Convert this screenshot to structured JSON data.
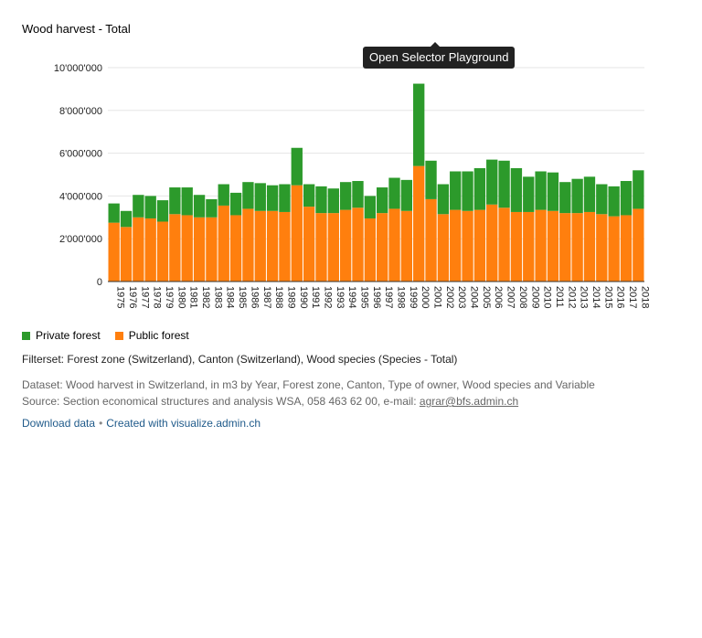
{
  "header": {
    "title": "Wood harvest - Total"
  },
  "tooltip": {
    "label": "Open Selector Playground"
  },
  "legend": [
    {
      "label": "Private forest",
      "color": "#2c9a2b"
    },
    {
      "label": "Public forest",
      "color": "#ff7f0e"
    }
  ],
  "footer": {
    "filterset": "Filterset: Forest zone (Switzerland), Canton (Switzerland), Wood species (Species - Total)",
    "dataset": "Dataset: Wood harvest in Switzerland, in m3 by Year, Forest zone, Canton, Type of owner, Wood species and Variable",
    "source_prefix": "Source: Section economical structures and analysis WSA, 058 463 62 00, e-mail: ",
    "source_email": "agrar@bfs.admin.ch",
    "download_label": "Download data",
    "separator": "•",
    "created_label": "Created with visualize.admin.ch"
  },
  "chart_data": {
    "type": "bar",
    "stacked": true,
    "title": "Wood harvest - Total",
    "xlabel": "",
    "ylabel": "",
    "ylim": [
      0,
      10000000
    ],
    "yticks": [
      0,
      2000000,
      4000000,
      6000000,
      8000000,
      10000000
    ],
    "ytick_labels": [
      "0",
      "2'000'000",
      "4'000'000",
      "6'000'000",
      "8'000'000",
      "10'000'000"
    ],
    "grid": true,
    "legend_position": "bottom-left",
    "categories": [
      "1975",
      "1976",
      "1977",
      "1978",
      "1979",
      "1980",
      "1981",
      "1982",
      "1983",
      "1984",
      "1985",
      "1986",
      "1987",
      "1988",
      "1989",
      "1990",
      "1991",
      "1992",
      "1993",
      "1994",
      "1995",
      "1996",
      "1997",
      "1998",
      "1999",
      "2000",
      "2001",
      "2002",
      "2003",
      "2004",
      "2005",
      "2006",
      "2007",
      "2008",
      "2009",
      "2010",
      "2011",
      "2012",
      "2013",
      "2014",
      "2015",
      "2016",
      "2017",
      "2018"
    ],
    "series": [
      {
        "name": "Public forest",
        "color": "#ff7f0e",
        "values": [
          2750000,
          2550000,
          3000000,
          2950000,
          2800000,
          3150000,
          3100000,
          3000000,
          3000000,
          3550000,
          3100000,
          3400000,
          3300000,
          3300000,
          3250000,
          4500000,
          3500000,
          3200000,
          3200000,
          3350000,
          3450000,
          2950000,
          3200000,
          3400000,
          3300000,
          5400000,
          3850000,
          3150000,
          3350000,
          3300000,
          3350000,
          3600000,
          3450000,
          3250000,
          3250000,
          3350000,
          3300000,
          3200000,
          3200000,
          3250000,
          3150000,
          3050000,
          3100000,
          3400000
        ]
      },
      {
        "name": "Private forest",
        "color": "#2c9a2b",
        "values": [
          900000,
          750000,
          1050000,
          1050000,
          1000000,
          1250000,
          1300000,
          1050000,
          850000,
          1000000,
          1050000,
          1250000,
          1300000,
          1200000,
          1300000,
          1750000,
          1050000,
          1250000,
          1150000,
          1300000,
          1250000,
          1050000,
          1200000,
          1450000,
          1450000,
          3850000,
          1800000,
          1400000,
          1800000,
          1850000,
          1950000,
          2100000,
          2200000,
          2050000,
          1650000,
          1800000,
          1800000,
          1450000,
          1600000,
          1650000,
          1400000,
          1400000,
          1600000,
          1800000
        ]
      }
    ]
  }
}
